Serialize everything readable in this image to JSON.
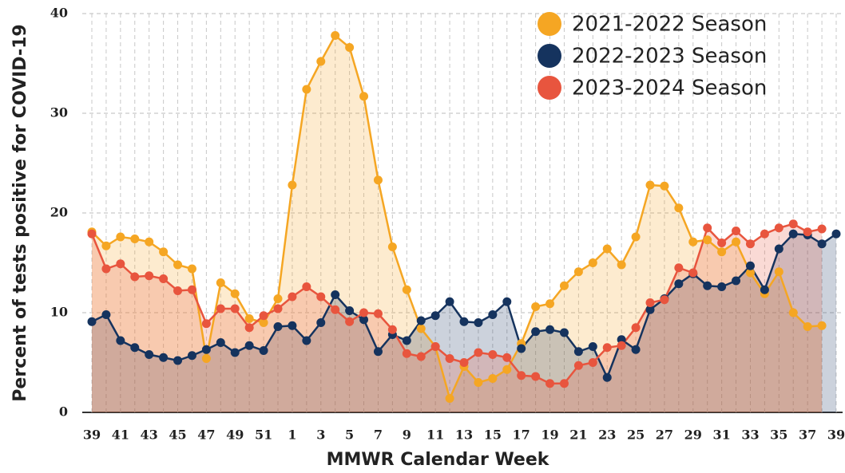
{
  "chart_data": {
    "type": "area-line",
    "y_label": "Percent of tests positive for COVID-19",
    "x_label": "MMWR Calendar Week",
    "categories": [
      "39",
      null,
      "41",
      null,
      "43",
      null,
      "45",
      null,
      "47",
      null,
      "49",
      null,
      "51",
      null,
      "1",
      null,
      "3",
      null,
      "5",
      null,
      "7",
      null,
      "9",
      null,
      "11",
      null,
      "13",
      null,
      "15",
      null,
      "17",
      null,
      "19",
      null,
      "21",
      null,
      "23",
      null,
      "25",
      null,
      "27",
      null,
      "29",
      null,
      "31",
      null,
      "33",
      null,
      "35",
      null,
      "37",
      null,
      "39"
    ],
    "series": [
      {
        "name": "2021-2022 Season",
        "color": "#f5a623",
        "values": [
          18.1,
          16.7,
          17.6,
          17.4,
          17.1,
          16.1,
          14.8,
          14.4,
          5.4,
          13.0,
          11.9,
          9.4,
          9.0,
          11.4,
          22.8,
          32.4,
          35.2,
          37.8,
          36.6,
          31.7,
          23.3,
          16.6,
          12.3,
          8.4,
          6.6,
          1.4,
          4.6,
          3.0,
          3.4,
          4.3,
          6.9,
          10.6,
          10.9,
          12.7,
          14.1,
          15.0,
          16.4,
          14.8,
          17.6,
          22.8,
          22.7,
          20.5,
          17.1,
          17.3,
          16.1,
          17.1,
          14.0,
          11.9,
          14.1,
          10.0,
          8.6,
          8.7,
          null
        ]
      },
      {
        "name": "2022-2023 Season",
        "color": "#15335e",
        "values": [
          9.1,
          9.8,
          7.2,
          6.5,
          5.8,
          5.5,
          5.2,
          5.7,
          6.3,
          7.0,
          6.0,
          6.7,
          6.2,
          8.6,
          8.7,
          7.2,
          9.0,
          11.8,
          10.2,
          9.3,
          6.1,
          7.8,
          7.2,
          9.2,
          9.7,
          11.1,
          9.1,
          9.0,
          9.8,
          11.1,
          6.4,
          8.1,
          8.3,
          8.0,
          6.1,
          6.6,
          3.5,
          7.3,
          6.3,
          10.3,
          11.4,
          12.9,
          13.9,
          12.7,
          12.6,
          13.2,
          14.7,
          12.3,
          16.4,
          17.9,
          17.8,
          16.9,
          17.9
        ]
      },
      {
        "name": "2023-2024 Season",
        "color": "#e8553e",
        "values": [
          17.9,
          14.4,
          14.9,
          13.6,
          13.7,
          13.4,
          12.2,
          12.3,
          8.9,
          10.4,
          10.4,
          8.5,
          9.7,
          10.4,
          11.6,
          12.6,
          11.6,
          10.3,
          9.1,
          10.0,
          9.9,
          8.3,
          5.9,
          5.6,
          6.6,
          5.4,
          5.0,
          6.0,
          5.8,
          5.5,
          3.7,
          3.6,
          2.9,
          2.9,
          4.7,
          5.0,
          6.5,
          6.7,
          8.5,
          11.0,
          11.3,
          14.5,
          14.0,
          18.5,
          17.0,
          18.2,
          16.9,
          17.9,
          18.5,
          18.9,
          18.1,
          18.4,
          null
        ]
      }
    ],
    "ylim": [
      0,
      40
    ],
    "yticks": [
      0,
      10,
      20,
      30,
      40
    ],
    "grid": true,
    "legend": "top-right"
  }
}
